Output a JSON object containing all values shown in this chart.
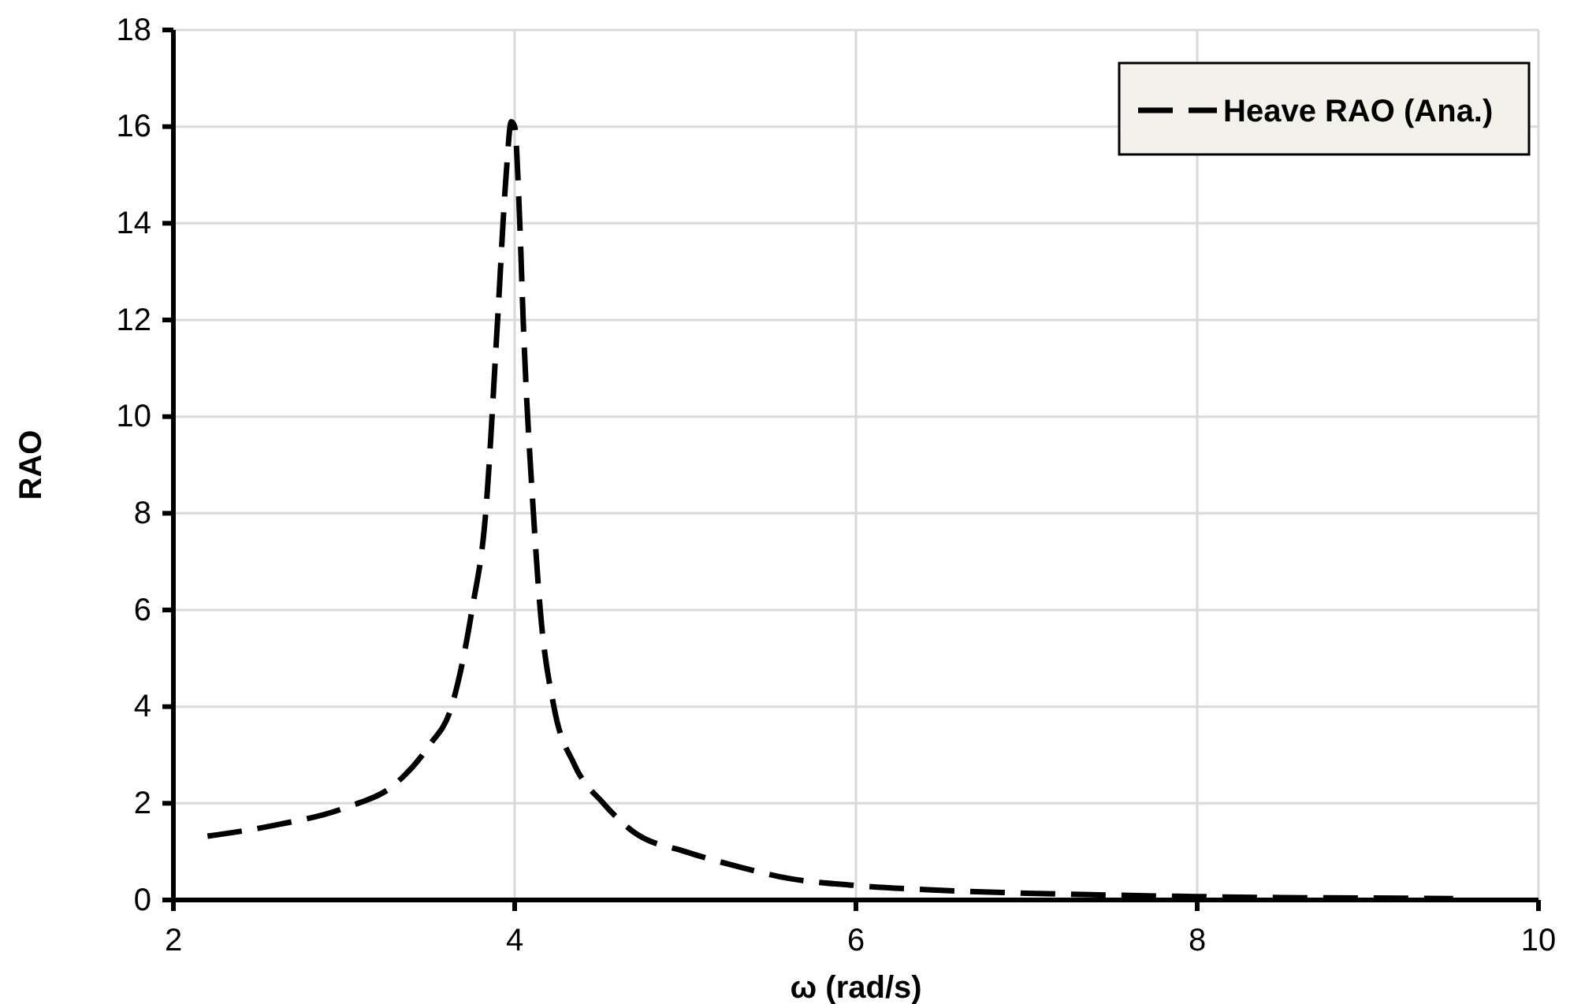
{
  "chart_data": {
    "type": "line",
    "xlabel": "ω (rad/s)",
    "ylabel": "RAO",
    "xlim": [
      2,
      10
    ],
    "xticks": [
      2,
      4,
      6,
      8,
      10
    ],
    "ylim": [
      0,
      18
    ],
    "yticks": [
      0,
      2,
      4,
      6,
      8,
      10,
      12,
      14,
      16,
      18
    ],
    "grid": true,
    "legend": "top right",
    "line_style": "dashed",
    "marker": "none",
    "series": [
      {
        "name": "Heave RAO (Ana.)",
        "color": "#000000",
        "x": [
          2.2,
          2.6,
          3.0,
          3.3,
          3.5,
          3.63,
          3.75,
          3.83,
          3.9,
          3.95,
          3.98,
          4.0,
          4.03,
          4.05,
          4.11,
          4.15,
          4.23,
          4.35,
          4.52,
          4.7,
          5.0,
          5.3,
          5.6,
          6.0,
          6.5,
          7.0,
          7.5,
          8.0,
          8.5,
          9.0,
          9.5
        ],
        "values": [
          1.32,
          1.55,
          1.9,
          2.4,
          3.2,
          4,
          6,
          8,
          12,
          15,
          16.1,
          16,
          14,
          12,
          8,
          6,
          4,
          2.8,
          2,
          1.4,
          1.0,
          0.7,
          0.45,
          0.3,
          0.2,
          0.14,
          0.1,
          0.07,
          0.05,
          0.04,
          0.03
        ]
      }
    ]
  }
}
